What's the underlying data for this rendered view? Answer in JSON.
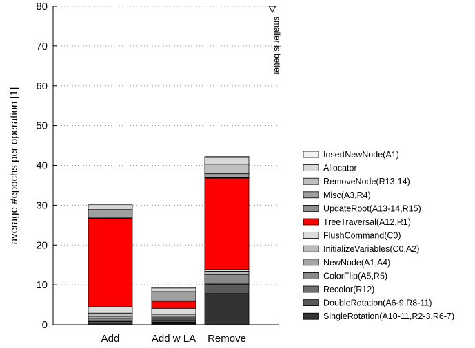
{
  "chart_data": {
    "type": "bar",
    "stacked": true,
    "ylabel": "average #epochs per operation [1]",
    "xlabel": "",
    "ylim": [
      0,
      80
    ],
    "yticks": [
      0,
      10,
      20,
      30,
      40,
      50,
      60,
      70,
      80
    ],
    "grid": true,
    "legend_position": "right",
    "annotation": "smaller is better",
    "categories": [
      "Add",
      "Add w LA",
      "Remove"
    ],
    "series": [
      {
        "name": "SingleRotation(A10-11,R2-3,R6-7)",
        "color": "#333333",
        "values": [
          0.4,
          0.3,
          7.8
        ]
      },
      {
        "name": "DoubleRotation(A6-9,R8-11)",
        "color": "#5a5a5a",
        "values": [
          0.4,
          0.3,
          2.2
        ]
      },
      {
        "name": "Recolor(R12)",
        "color": "#707070",
        "values": [
          0.3,
          0.3,
          0.2
        ]
      },
      {
        "name": "ColorFlip(A5,R5)",
        "color": "#8a8a8a",
        "values": [
          0.5,
          0.5,
          2.0
        ]
      },
      {
        "name": "NewNode(A1,A4)",
        "color": "#a5a5a5",
        "values": [
          0.5,
          0.5,
          0.3
        ]
      },
      {
        "name": "InitializeVariables(C0,A2)",
        "color": "#bcbcbc",
        "values": [
          0.8,
          0.7,
          0.9
        ]
      },
      {
        "name": "FlushCommand(C0)",
        "color": "#dcdcdc",
        "values": [
          1.6,
          1.5,
          0.5
        ]
      },
      {
        "name": "TreeTraversal(A12,R1)",
        "color": "#ff0000",
        "values": [
          22.2,
          1.8,
          22.9
        ]
      },
      {
        "name": "UpdateRoot(A13-14,R15)",
        "color": "#8f8f8f",
        "values": [
          0.1,
          0.1,
          0.1
        ]
      },
      {
        "name": "Misc(A3,R4)",
        "color": "#a0a0a0",
        "values": [
          2.1,
          2.3,
          1.0
        ]
      },
      {
        "name": "RemoveNode(R13-14)",
        "color": "#c0c0c0",
        "values": [
          0.0,
          0.0,
          2.4
        ]
      },
      {
        "name": "Allocator",
        "color": "#d8d8d8",
        "values": [
          0.9,
          0.9,
          1.7
        ]
      },
      {
        "name": "InsertNewNode(A1)",
        "color": "#f2f2f2",
        "values": [
          0.3,
          0.2,
          0.2
        ]
      }
    ]
  }
}
